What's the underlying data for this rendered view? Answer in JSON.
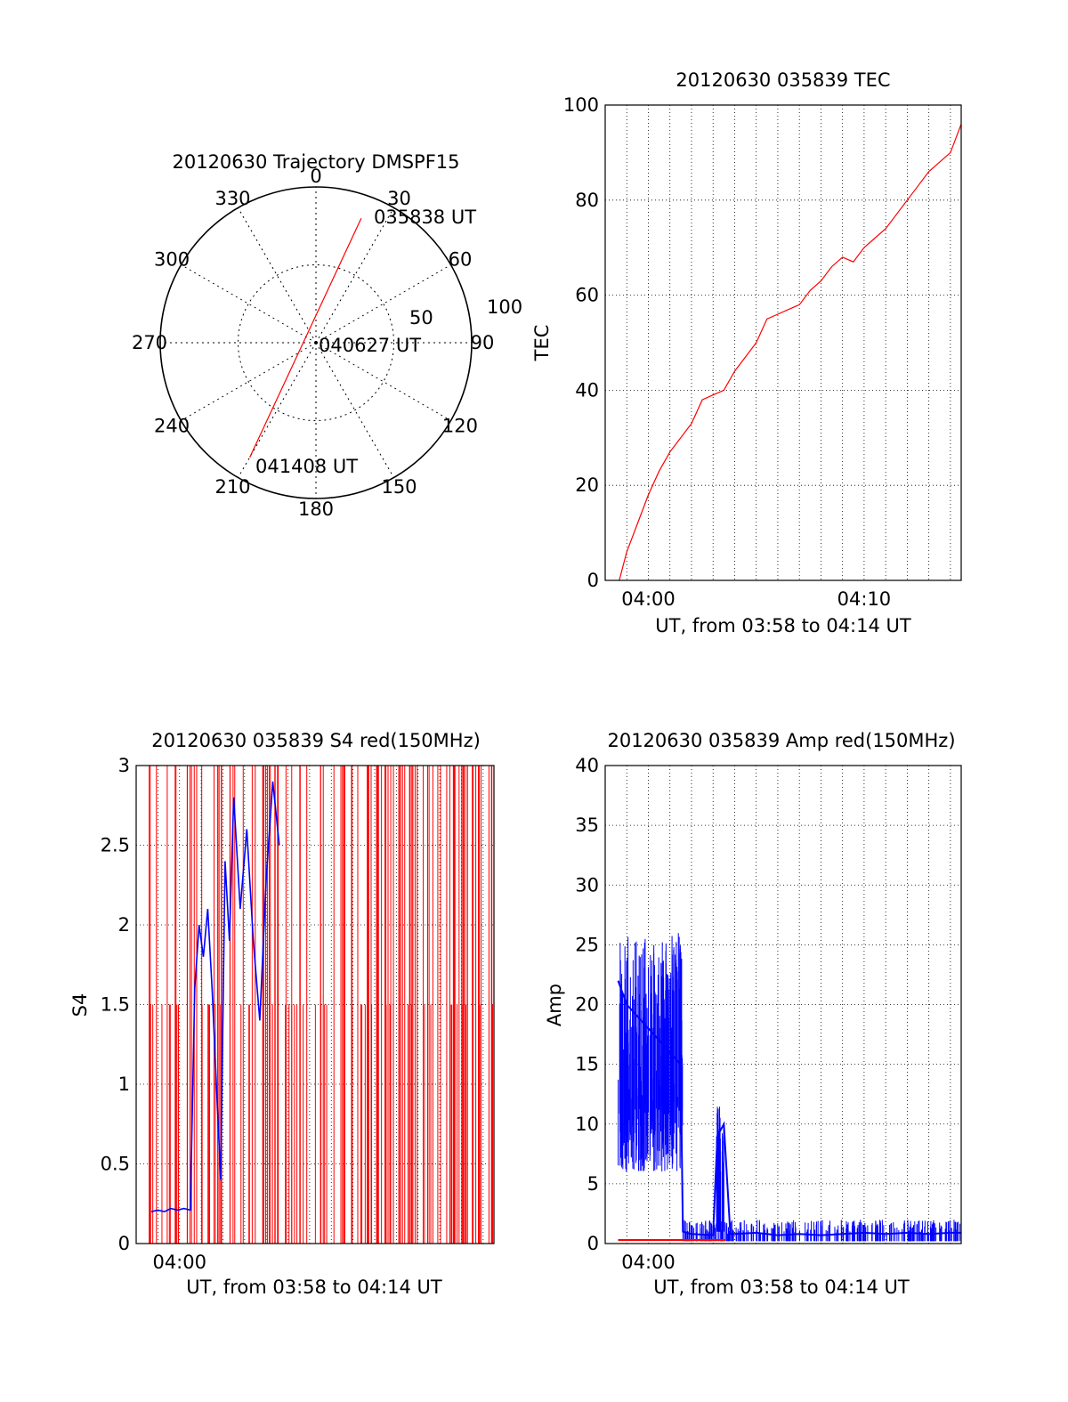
{
  "chart_data": [
    {
      "type": "polar",
      "title": "20120630 Trajectory DMSPF15",
      "angle_labels": [
        "0",
        "30",
        "60",
        "90",
        "120",
        "150",
        "180",
        "210",
        "240",
        "270",
        "300",
        "330"
      ],
      "radial_labels": [
        "50",
        "100"
      ],
      "rmax": 100,
      "track": {
        "color": "#ff0000",
        "start": {
          "label": "035838 UT",
          "azimuth": 20,
          "value": 85
        },
        "mid": {
          "label": "040627 UT",
          "azimuth": 0,
          "value": 0
        },
        "end": {
          "label": "041408 UT",
          "azimuth": 210,
          "value": 85
        }
      }
    },
    {
      "type": "line",
      "title": "20120630 035839 TEC",
      "xlabel": "UT, from 03:58 to 04:14 UT",
      "ylabel": "TEC",
      "xlim": [
        238,
        254.5
      ],
      "ylim": [
        0,
        100
      ],
      "x_ticks": [
        {
          "value": 240,
          "label": "04:00"
        },
        {
          "value": 250,
          "label": "04:10"
        }
      ],
      "y_ticks": [
        "0",
        "20",
        "40",
        "60",
        "80",
        "100"
      ],
      "grid": true,
      "series": [
        {
          "color": "#ff0000",
          "x": [
            238.65,
            239.0,
            239.5,
            240.0,
            240.5,
            241.0,
            241.5,
            242.0,
            242.5,
            243.0,
            243.5,
            244.0,
            244.5,
            245.0,
            245.5,
            246.0,
            246.5,
            247.0,
            247.5,
            248.0,
            248.5,
            249.0,
            249.5,
            250.0,
            250.5,
            251.0,
            251.5,
            252.0,
            252.5,
            253.0,
            253.5,
            254.0,
            254.5
          ],
          "y": [
            0,
            6,
            12,
            18,
            23,
            27,
            30,
            33,
            38,
            39,
            40,
            44,
            47,
            50,
            55,
            56,
            57,
            58,
            61,
            63,
            66,
            68,
            67,
            70,
            72,
            74,
            77,
            80,
            83,
            86,
            88,
            90,
            96
          ]
        }
      ]
    },
    {
      "type": "line",
      "title": "20120630 035839 S4 red(150MHz)",
      "xlabel": "UT, from 03:58 to 04:14 UT",
      "ylabel": "S4",
      "xlim": [
        238,
        254.5
      ],
      "ylim": [
        0,
        3
      ],
      "x_ticks": [
        {
          "value": 240,
          "label": "04:00"
        }
      ],
      "y_ticks": [
        "0",
        "0.5",
        "1",
        "1.5",
        "2",
        "2.5",
        "3"
      ],
      "grid": true,
      "series": [
        {
          "color": "#0000ff",
          "x": [
            238.7,
            239.0,
            239.3,
            239.6,
            239.9,
            240.2,
            240.5,
            240.7,
            240.9,
            241.1,
            241.3,
            241.5,
            241.7,
            241.9,
            242.1,
            242.3,
            242.5,
            242.8,
            243.1,
            243.4,
            243.7,
            244.0,
            244.3,
            244.6
          ],
          "y": [
            0.2,
            0.21,
            0.2,
            0.22,
            0.21,
            0.22,
            0.21,
            1.6,
            2.0,
            1.8,
            2.1,
            1.6,
            1.0,
            0.4,
            2.4,
            1.9,
            2.8,
            2.1,
            2.6,
            1.9,
            1.4,
            2.3,
            2.9,
            2.5
          ]
        }
      ]
    },
    {
      "type": "line",
      "title": "20120630 035839 Amp red(150MHz)",
      "xlabel": "UT, from 03:58 to 04:14 UT",
      "ylabel": "Amp",
      "xlim": [
        238,
        254.5
      ],
      "ylim": [
        0,
        40
      ],
      "x_ticks": [
        {
          "value": 240,
          "label": "04:00"
        }
      ],
      "y_ticks": [
        "0",
        "5",
        "10",
        "15",
        "20",
        "25",
        "30",
        "35",
        "40"
      ],
      "grid": true,
      "series": [
        {
          "color": "#0000ff",
          "x": [
            238.6,
            239.0,
            239.5,
            240.0,
            240.5,
            241.0,
            241.5,
            241.6,
            242.0,
            243.0,
            243.2,
            243.5,
            243.8,
            244.0,
            245.0,
            246.0,
            247.0,
            248.0,
            249.0,
            250.0,
            251.0,
            252.0,
            253.0,
            254.0,
            254.5
          ],
          "y": [
            22,
            20,
            19,
            18,
            17,
            16,
            15,
            1.0,
            0.8,
            0.7,
            9,
            10,
            0.8,
            0.8,
            0.9,
            0.7,
            0.8,
            0.7,
            0.8,
            0.9,
            0.8,
            0.9,
            0.8,
            0.9,
            0.9
          ]
        },
        {
          "color": "#ff0000",
          "x": [
            238.6,
            241.6,
            243.4,
            243.6
          ],
          "y": [
            0.3,
            0.3,
            0.3,
            0.3
          ]
        }
      ]
    }
  ]
}
